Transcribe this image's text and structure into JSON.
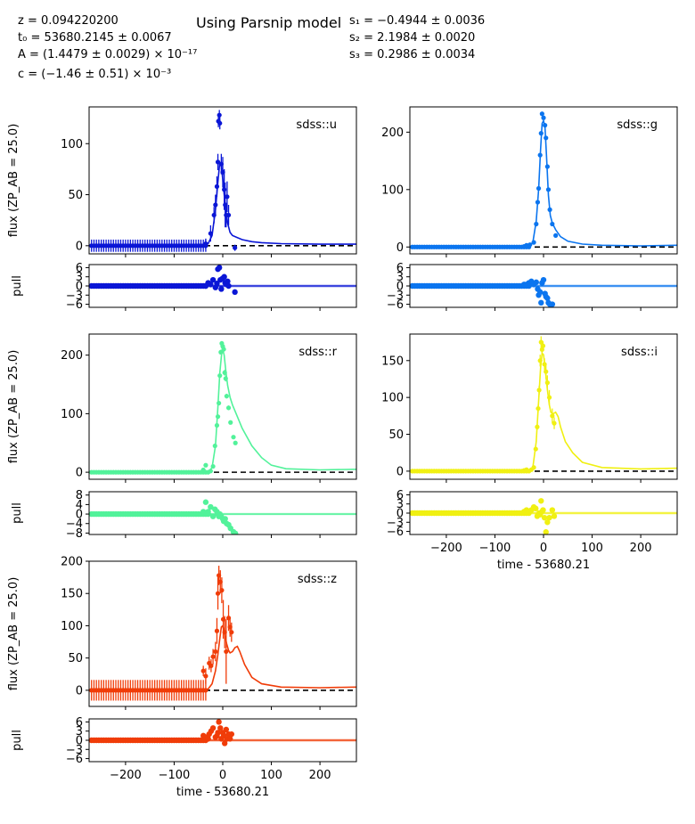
{
  "header": {
    "title": "Using Parsnip model",
    "params_left": [
      "z = 0.094220200",
      "t₀ = 53680.2145 ± 0.0067",
      "A = (1.4479 ± 0.0029) × 10⁻¹⁷",
      "c = (−1.46 ± 0.51) × 10⁻³"
    ],
    "params_right": [
      "s₁ = −0.4944 ± 0.0036",
      "s₂ = 2.1984 ± 0.0020",
      "s₃ = 0.2986 ± 0.0034"
    ]
  },
  "labels": {
    "flux_ylabel": "flux (ZP_AB = 25.0)",
    "pull_ylabel": "pull",
    "xlabel": "time - 53680.21"
  },
  "chart_data": [
    {
      "type": "scatter",
      "band": "sdss::u",
      "color": "#0a16d6",
      "xlim": [
        -275,
        275
      ],
      "ylim": [
        -8,
        136
      ],
      "yticks": [
        0,
        50,
        100
      ],
      "pull_yticks": [
        -6,
        -3,
        0,
        3,
        6
      ],
      "pull_ylim": [
        -7,
        7
      ],
      "baseline": {
        "from": -270,
        "to": -35,
        "step": 5,
        "y": 0,
        "err": 6
      },
      "points": [
        {
          "x": -35,
          "y": 2,
          "e": 5
        },
        {
          "x": -25,
          "y": 12,
          "e": 8
        },
        {
          "x": -18,
          "y": 30,
          "e": 8
        },
        {
          "x": -15,
          "y": 40,
          "e": 10
        },
        {
          "x": -12,
          "y": 58,
          "e": 10
        },
        {
          "x": -10,
          "y": 82,
          "e": 8
        },
        {
          "x": -9,
          "y": 122,
          "e": 6
        },
        {
          "x": -7,
          "y": 128,
          "e": 5
        },
        {
          "x": -6,
          "y": 120,
          "e": 6
        },
        {
          "x": -3,
          "y": 80,
          "e": 10
        },
        {
          "x": 0,
          "y": 72,
          "e": 15
        },
        {
          "x": 3,
          "y": 55,
          "e": 20
        },
        {
          "x": 5,
          "y": 40,
          "e": 22
        },
        {
          "x": 7,
          "y": 30,
          "e": 12
        },
        {
          "x": 9,
          "y": 48,
          "e": 15
        },
        {
          "x": 12,
          "y": 30,
          "e": 10
        },
        {
          "x": 25,
          "y": -2,
          "e": 3
        }
      ],
      "model": [
        [
          -275,
          0
        ],
        [
          -40,
          0
        ],
        [
          -30,
          2
        ],
        [
          -22,
          10
        ],
        [
          -15,
          35
        ],
        [
          -10,
          62
        ],
        [
          -6,
          82
        ],
        [
          -3,
          78
        ],
        [
          0,
          65
        ],
        [
          5,
          40
        ],
        [
          10,
          22
        ],
        [
          15,
          13
        ],
        [
          20,
          10
        ],
        [
          30,
          8
        ],
        [
          40,
          6
        ],
        [
          60,
          4
        ],
        [
          80,
          3
        ],
        [
          120,
          2
        ],
        [
          200,
          1.5
        ],
        [
          275,
          1.5
        ]
      ],
      "pull": [
        [
          -35,
          0
        ],
        [
          -30,
          1
        ],
        [
          -25,
          0.5
        ],
        [
          -20,
          2
        ],
        [
          -15,
          -0.5
        ],
        [
          -12,
          0.8
        ],
        [
          -10,
          5.5
        ],
        [
          -7,
          6
        ],
        [
          -5,
          2
        ],
        [
          -3,
          -1
        ],
        [
          0,
          2.5
        ],
        [
          3,
          3
        ],
        [
          5,
          1
        ],
        [
          8,
          0.5
        ],
        [
          10,
          1.5
        ],
        [
          12,
          0
        ],
        [
          25,
          -2
        ]
      ]
    },
    {
      "type": "scatter",
      "band": "sdss::g",
      "color": "#0b75ef",
      "xlim": [
        -275,
        275
      ],
      "ylim": [
        -12,
        244
      ],
      "yticks": [
        0,
        100,
        200
      ],
      "pull_yticks": [
        -6,
        -3,
        0,
        3,
        6
      ],
      "pull_ylim": [
        -7,
        7
      ],
      "baseline": {
        "from": -270,
        "to": -30,
        "step": 5,
        "y": 0,
        "err": 1
      },
      "points": [
        {
          "x": -40,
          "y": 1,
          "e": 1
        },
        {
          "x": -35,
          "y": 3,
          "e": 1
        },
        {
          "x": -28,
          "y": 4,
          "e": 1
        },
        {
          "x": -20,
          "y": 8,
          "e": 1
        },
        {
          "x": -15,
          "y": 40,
          "e": 2
        },
        {
          "x": -12,
          "y": 78,
          "e": 2
        },
        {
          "x": -10,
          "y": 102,
          "e": 2
        },
        {
          "x": -7,
          "y": 160,
          "e": 3
        },
        {
          "x": -5,
          "y": 198,
          "e": 3
        },
        {
          "x": -3,
          "y": 232,
          "e": 3
        },
        {
          "x": 0,
          "y": 225,
          "e": 3
        },
        {
          "x": 3,
          "y": 212,
          "e": 3
        },
        {
          "x": 5,
          "y": 190,
          "e": 3
        },
        {
          "x": 8,
          "y": 140,
          "e": 3
        },
        {
          "x": 10,
          "y": 100,
          "e": 3
        },
        {
          "x": 13,
          "y": 65,
          "e": 2
        },
        {
          "x": 18,
          "y": 40,
          "e": 2
        },
        {
          "x": 25,
          "y": 20,
          "e": 2
        }
      ],
      "model": [
        [
          -275,
          0
        ],
        [
          -30,
          0
        ],
        [
          -22,
          8
        ],
        [
          -15,
          45
        ],
        [
          -10,
          100
        ],
        [
          -6,
          170
        ],
        [
          -3,
          215
        ],
        [
          0,
          220
        ],
        [
          3,
          210
        ],
        [
          6,
          160
        ],
        [
          10,
          90
        ],
        [
          14,
          55
        ],
        [
          18,
          42
        ],
        [
          25,
          30
        ],
        [
          35,
          18
        ],
        [
          50,
          10
        ],
        [
          80,
          5
        ],
        [
          120,
          3
        ],
        [
          200,
          2
        ],
        [
          275,
          3
        ]
      ],
      "pull": [
        [
          -40,
          0.5
        ],
        [
          -35,
          0.5
        ],
        [
          -30,
          1
        ],
        [
          -25,
          1.5
        ],
        [
          -20,
          0.5
        ],
        [
          -15,
          1.2
        ],
        [
          -12,
          -1
        ],
        [
          -10,
          -3
        ],
        [
          -7,
          -2
        ],
        [
          -5,
          -5.5
        ],
        [
          -3,
          1
        ],
        [
          0,
          2
        ],
        [
          3,
          -2.5
        ],
        [
          5,
          -3.5
        ],
        [
          8,
          -4
        ],
        [
          10,
          -5.5
        ],
        [
          13,
          -6
        ],
        [
          18,
          -6
        ]
      ]
    },
    {
      "type": "scatter",
      "band": "sdss::r",
      "color": "#52f29a",
      "xlim": [
        -275,
        275
      ],
      "ylim": [
        -12,
        236
      ],
      "yticks": [
        0,
        100,
        200
      ],
      "pull_yticks": [
        -8,
        -4,
        0,
        4,
        8
      ],
      "pull_ylim": [
        -8.6,
        9.4
      ],
      "baseline": {
        "from": -270,
        "to": -30,
        "step": 5,
        "y": 0,
        "err": 1
      },
      "points": [
        {
          "x": -40,
          "y": 4,
          "e": 1
        },
        {
          "x": -35,
          "y": 12,
          "e": 1
        },
        {
          "x": -25,
          "y": 2,
          "e": 1
        },
        {
          "x": -20,
          "y": 10,
          "e": 1
        },
        {
          "x": -16,
          "y": 45,
          "e": 2
        },
        {
          "x": -12,
          "y": 80,
          "e": 2
        },
        {
          "x": -10,
          "y": 95,
          "e": 3
        },
        {
          "x": -8,
          "y": 118,
          "e": 3
        },
        {
          "x": -6,
          "y": 165,
          "e": 4
        },
        {
          "x": -4,
          "y": 205,
          "e": 4
        },
        {
          "x": -2,
          "y": 220,
          "e": 4
        },
        {
          "x": 0,
          "y": 215,
          "e": 4
        },
        {
          "x": 2,
          "y": 210,
          "e": 4
        },
        {
          "x": 4,
          "y": 170,
          "e": 5
        },
        {
          "x": 6,
          "y": 160,
          "e": 5
        },
        {
          "x": 8,
          "y": 130,
          "e": 4
        },
        {
          "x": 12,
          "y": 110,
          "e": 4
        },
        {
          "x": 16,
          "y": 85,
          "e": 3
        },
        {
          "x": 22,
          "y": 60,
          "e": 3
        },
        {
          "x": 26,
          "y": 50,
          "e": 3
        }
      ],
      "model": [
        [
          -275,
          0
        ],
        [
          -30,
          0
        ],
        [
          -22,
          8
        ],
        [
          -15,
          45
        ],
        [
          -10,
          110
        ],
        [
          -6,
          170
        ],
        [
          -2,
          205
        ],
        [
          0,
          210
        ],
        [
          3,
          200
        ],
        [
          6,
          175
        ],
        [
          10,
          148
        ],
        [
          15,
          128
        ],
        [
          20,
          115
        ],
        [
          30,
          95
        ],
        [
          40,
          75
        ],
        [
          60,
          45
        ],
        [
          80,
          25
        ],
        [
          100,
          12
        ],
        [
          130,
          6
        ],
        [
          200,
          4
        ],
        [
          275,
          5
        ]
      ],
      "pull": [
        [
          -40,
          1
        ],
        [
          -35,
          5
        ],
        [
          -30,
          1
        ],
        [
          -25,
          3
        ],
        [
          -20,
          -1
        ],
        [
          -16,
          2
        ],
        [
          -12,
          1
        ],
        [
          -10,
          0
        ],
        [
          -8,
          -1
        ],
        [
          -6,
          0
        ],
        [
          -3,
          -1
        ],
        [
          0,
          -2
        ],
        [
          2,
          -3
        ],
        [
          5,
          -2
        ],
        [
          8,
          -4
        ],
        [
          12,
          -4.5
        ],
        [
          16,
          -6
        ],
        [
          22,
          -7.5
        ],
        [
          26,
          -8.2
        ]
      ]
    },
    {
      "type": "scatter",
      "band": "sdss::i",
      "color": "#f0f012",
      "xlim": [
        -275,
        275
      ],
      "ylim": [
        -11,
        186
      ],
      "yticks": [
        0,
        50,
        100,
        150
      ],
      "pull_yticks": [
        -6,
        -3,
        0,
        3,
        6
      ],
      "pull_ylim": [
        -7,
        7
      ],
      "baseline": {
        "from": -270,
        "to": -30,
        "step": 5,
        "y": 0,
        "err": 1.5
      },
      "points": [
        {
          "x": -40,
          "y": 1,
          "e": 1
        },
        {
          "x": -35,
          "y": 2,
          "e": 1
        },
        {
          "x": -25,
          "y": 2,
          "e": 1
        },
        {
          "x": -20,
          "y": 5,
          "e": 1
        },
        {
          "x": -16,
          "y": 30,
          "e": 3
        },
        {
          "x": -13,
          "y": 60,
          "e": 4
        },
        {
          "x": -11,
          "y": 85,
          "e": 5
        },
        {
          "x": -9,
          "y": 110,
          "e": 6
        },
        {
          "x": -7,
          "y": 150,
          "e": 8
        },
        {
          "x": -5,
          "y": 175,
          "e": 8
        },
        {
          "x": -3,
          "y": 165,
          "e": 8
        },
        {
          "x": -1,
          "y": 170,
          "e": 6
        },
        {
          "x": 2,
          "y": 145,
          "e": 8
        },
        {
          "x": 5,
          "y": 135,
          "e": 10
        },
        {
          "x": 8,
          "y": 120,
          "e": 10
        },
        {
          "x": 12,
          "y": 100,
          "e": 10
        },
        {
          "x": 18,
          "y": 75,
          "e": 10
        },
        {
          "x": 22,
          "y": 65,
          "e": 8
        }
      ],
      "model": [
        [
          -275,
          0
        ],
        [
          -30,
          0
        ],
        [
          -22,
          5
        ],
        [
          -15,
          40
        ],
        [
          -10,
          95
        ],
        [
          -6,
          140
        ],
        [
          -3,
          160
        ],
        [
          0,
          158
        ],
        [
          4,
          135
        ],
        [
          8,
          110
        ],
        [
          12,
          90
        ],
        [
          15,
          80
        ],
        [
          20,
          78
        ],
        [
          25,
          80
        ],
        [
          30,
          74
        ],
        [
          35,
          60
        ],
        [
          45,
          40
        ],
        [
          60,
          25
        ],
        [
          80,
          12
        ],
        [
          120,
          5
        ],
        [
          200,
          3
        ],
        [
          275,
          4
        ]
      ],
      "pull": [
        [
          -40,
          0.5
        ],
        [
          -35,
          1
        ],
        [
          -30,
          0.5
        ],
        [
          -25,
          1
        ],
        [
          -20,
          2
        ],
        [
          -16,
          1.5
        ],
        [
          -13,
          -1
        ],
        [
          -11,
          -0.5
        ],
        [
          -9,
          0
        ],
        [
          -7,
          -0.5
        ],
        [
          -5,
          4
        ],
        [
          -3,
          0.5
        ],
        [
          -1,
          1
        ],
        [
          2,
          -1.5
        ],
        [
          5,
          -6.2
        ],
        [
          8,
          -3
        ],
        [
          12,
          -1.5
        ],
        [
          18,
          1
        ],
        [
          22,
          -1
        ]
      ]
    },
    {
      "type": "scatter",
      "band": "sdss::z",
      "color": "#f03c08",
      "xlim": [
        -275,
        275
      ],
      "ylim": [
        -25,
        200
      ],
      "yticks": [
        0,
        50,
        100,
        150,
        200
      ],
      "pull_yticks": [
        -6,
        -3,
        0,
        3,
        6
      ],
      "pull_ylim": [
        -7,
        7
      ],
      "baseline": {
        "from": -270,
        "to": -35,
        "step": 5,
        "y": 0,
        "err": 16
      },
      "points": [
        {
          "x": -40,
          "y": 30,
          "e": 8
        },
        {
          "x": -35,
          "y": 22,
          "e": 12
        },
        {
          "x": -28,
          "y": 42,
          "e": 10
        },
        {
          "x": -24,
          "y": 38,
          "e": 10
        },
        {
          "x": -20,
          "y": 52,
          "e": 12
        },
        {
          "x": -15,
          "y": 60,
          "e": 15
        },
        {
          "x": -12,
          "y": 92,
          "e": 20
        },
        {
          "x": -10,
          "y": 150,
          "e": 25
        },
        {
          "x": -8,
          "y": 178,
          "e": 15
        },
        {
          "x": -5,
          "y": 168,
          "e": 18
        },
        {
          "x": -2,
          "y": 155,
          "e": 20
        },
        {
          "x": 1,
          "y": 110,
          "e": 30
        },
        {
          "x": 4,
          "y": 90,
          "e": 25
        },
        {
          "x": 7,
          "y": 60,
          "e": 50
        },
        {
          "x": 12,
          "y": 112,
          "e": 20
        },
        {
          "x": 15,
          "y": 98,
          "e": 15
        },
        {
          "x": 18,
          "y": 90,
          "e": 15
        }
      ],
      "model": [
        [
          -275,
          0
        ],
        [
          -40,
          0
        ],
        [
          -30,
          2
        ],
        [
          -22,
          10
        ],
        [
          -15,
          30
        ],
        [
          -10,
          55
        ],
        [
          -6,
          80
        ],
        [
          -3,
          98
        ],
        [
          0,
          100
        ],
        [
          3,
          90
        ],
        [
          8,
          72
        ],
        [
          12,
          62
        ],
        [
          15,
          58
        ],
        [
          20,
          60
        ],
        [
          25,
          66
        ],
        [
          30,
          68
        ],
        [
          35,
          60
        ],
        [
          45,
          40
        ],
        [
          60,
          20
        ],
        [
          80,
          10
        ],
        [
          120,
          5
        ],
        [
          200,
          4
        ],
        [
          275,
          5
        ]
      ],
      "pull": [
        [
          -40,
          1.5
        ],
        [
          -35,
          1
        ],
        [
          -30,
          0.5
        ],
        [
          -28,
          2
        ],
        [
          -24,
          3
        ],
        [
          -20,
          4
        ],
        [
          -15,
          1
        ],
        [
          -12,
          1.5
        ],
        [
          -10,
          2.5
        ],
        [
          -8,
          6
        ],
        [
          -5,
          4
        ],
        [
          -3,
          0.5
        ],
        [
          0,
          2.5
        ],
        [
          2,
          1.5
        ],
        [
          4,
          -1
        ],
        [
          7,
          3.5
        ],
        [
          9,
          0.5
        ],
        [
          12,
          2
        ],
        [
          15,
          0.5
        ],
        [
          18,
          2
        ]
      ]
    }
  ]
}
